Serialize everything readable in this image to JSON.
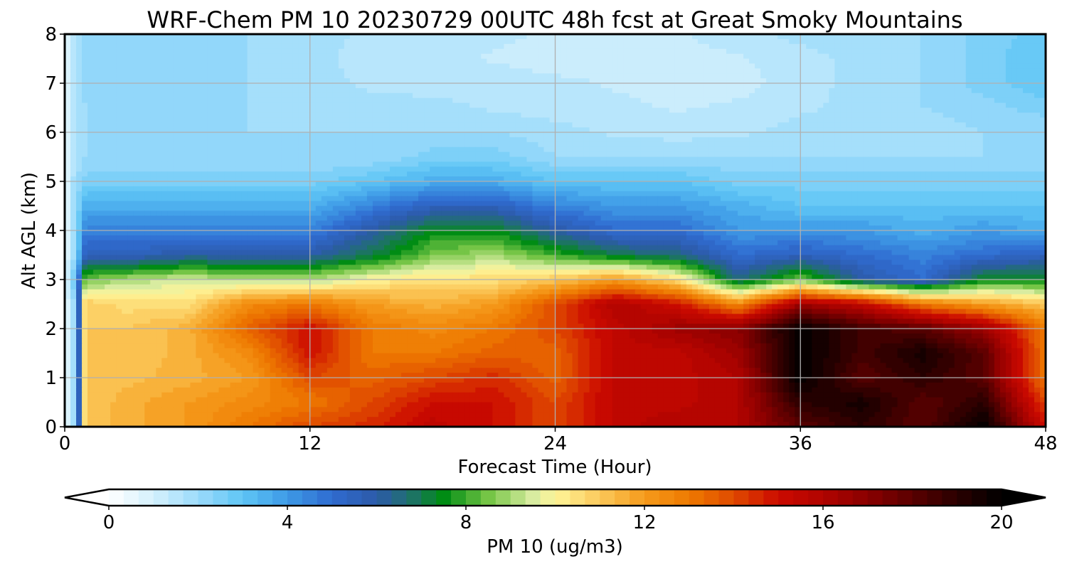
{
  "chart_data": {
    "type": "heatmap",
    "title": "WRF-Chem PM 10  20230729 00UTC 48h fcst at Great Smoky Mountains",
    "xlabel": "Forecast Time (Hour)",
    "ylabel": "Alt AGL (km)",
    "xlim": [
      0,
      48
    ],
    "ylim": [
      0,
      8
    ],
    "xticks": [
      "0",
      "12",
      "24",
      "36",
      "48"
    ],
    "yticks": [
      "0",
      "1",
      "2",
      "3",
      "4",
      "5",
      "6",
      "7",
      "8"
    ],
    "grid": true,
    "x": [
      0,
      0.5,
      1,
      3,
      6,
      9,
      12,
      15,
      18,
      21,
      24,
      27,
      30,
      33,
      36,
      39,
      42,
      45,
      48
    ],
    "y": [
      0,
      0.5,
      1,
      1.5,
      2,
      2.5,
      3,
      3.5,
      4,
      4.5,
      5,
      5.5,
      6,
      6.5,
      7,
      7.5,
      8
    ],
    "z": [
      [
        0.5,
        2,
        11,
        11.5,
        12,
        13,
        14,
        14.5,
        15.5,
        15,
        14,
        15.5,
        16,
        16,
        18,
        19,
        18,
        20,
        15
      ],
      [
        0.5,
        2,
        11,
        11.5,
        12,
        12.5,
        13,
        14,
        15,
        15,
        14,
        15.5,
        15.5,
        16,
        19,
        19.5,
        18,
        19,
        14
      ],
      [
        0.5,
        2,
        11,
        11.2,
        11.5,
        12,
        14,
        13.5,
        14,
        14.5,
        13.5,
        15.5,
        15.5,
        16,
        20,
        18,
        19,
        18,
        13
      ],
      [
        0.5,
        2,
        11,
        11,
        11.5,
        12.5,
        15,
        13,
        13,
        13.5,
        13.5,
        15.5,
        15.5,
        16.5,
        20,
        18.5,
        19.5,
        18,
        13
      ],
      [
        0.5,
        2,
        11,
        11,
        11.5,
        13.5,
        15,
        13,
        12.5,
        13,
        14,
        15.5,
        16.5,
        17,
        20,
        18.5,
        18,
        16.5,
        13
      ],
      [
        0.5,
        2,
        11,
        10.5,
        10.5,
        12.5,
        13,
        12,
        11.5,
        12,
        14,
        16,
        15,
        12.5,
        16.5,
        15.5,
        13,
        12,
        11
      ],
      [
        0.5,
        3,
        8.5,
        9,
        9.5,
        9,
        9,
        10,
        10.5,
        10.5,
        11,
        12,
        10.5,
        6.5,
        8.5,
        6,
        5,
        7.5,
        7.5
      ],
      [
        0.5,
        2,
        5.5,
        5.5,
        6,
        6,
        6,
        7,
        8.5,
        9,
        8,
        7,
        6.5,
        5,
        5.5,
        5,
        4.5,
        5,
        5.5
      ],
      [
        0.5,
        2,
        4.5,
        4.5,
        4.5,
        4.5,
        4.5,
        6,
        7.5,
        7.5,
        6,
        5,
        5,
        4,
        4,
        4,
        3.5,
        4,
        3.5
      ],
      [
        0.5,
        2,
        3.5,
        3.5,
        3.5,
        3.5,
        3.5,
        4.5,
        5.5,
        5.5,
        4.5,
        4,
        4,
        3.5,
        3,
        3,
        3,
        3,
        3
      ],
      [
        0.5,
        2,
        2.5,
        2.5,
        2.5,
        2.5,
        2.5,
        3,
        3.5,
        3.5,
        3,
        3,
        3,
        2.5,
        2.5,
        2.5,
        2.5,
        2.5,
        2.5
      ],
      [
        0.5,
        1.5,
        2,
        2,
        2,
        2,
        2,
        2,
        2.5,
        2.5,
        2,
        2,
        2,
        2,
        2,
        2,
        2,
        2,
        2
      ],
      [
        0.5,
        1.5,
        2,
        2,
        2,
        2,
        2,
        2,
        2,
        2,
        1.8,
        1.6,
        1.5,
        1.6,
        1.8,
        1.8,
        1.8,
        2,
        2
      ],
      [
        0.5,
        1.5,
        2,
        2,
        2,
        2,
        1.8,
        1.8,
        1.8,
        1.6,
        1.5,
        1.4,
        1.3,
        1.4,
        1.6,
        1.8,
        2,
        2.2,
        2.5
      ],
      [
        0.5,
        1.5,
        2.2,
        2.2,
        2.2,
        2,
        1.8,
        1.6,
        1.5,
        1.5,
        1.4,
        1.3,
        1.2,
        1.2,
        1.5,
        1.8,
        2,
        2.5,
        3
      ],
      [
        0.5,
        1.5,
        2.2,
        2.2,
        2,
        2,
        1.8,
        1.5,
        1.4,
        1.3,
        1.2,
        1.2,
        1.2,
        1.3,
        1.5,
        1.8,
        2,
        2.5,
        3
      ],
      [
        0.5,
        1.5,
        2.2,
        2,
        2,
        2,
        1.8,
        1.6,
        1.5,
        1.4,
        1.3,
        1.3,
        1.3,
        1.5,
        1.8,
        2,
        2,
        2.5,
        2.8
      ]
    ],
    "colorbar": {
      "label": "PM 10  (ug/m3)",
      "min": 0,
      "max": 20,
      "ticks": [
        "0",
        "4",
        "8",
        "12",
        "16",
        "20"
      ],
      "extend": "both",
      "stops": [
        {
          "v": 0,
          "c": "#ffffff"
        },
        {
          "v": 1,
          "c": "#d4f0fc"
        },
        {
          "v": 2,
          "c": "#9cdbfb"
        },
        {
          "v": 3,
          "c": "#5ec5f5"
        },
        {
          "v": 4,
          "c": "#3e9ae6"
        },
        {
          "v": 5,
          "c": "#2f6bd0"
        },
        {
          "v": 6,
          "c": "#2c5aa8"
        },
        {
          "v": 6.7,
          "c": "#216f72"
        },
        {
          "v": 7.5,
          "c": "#008c14"
        },
        {
          "v": 8.5,
          "c": "#75c546"
        },
        {
          "v": 9.5,
          "c": "#d8eca0"
        },
        {
          "v": 10,
          "c": "#fff59a"
        },
        {
          "v": 11,
          "c": "#fbc95a"
        },
        {
          "v": 12,
          "c": "#f59a1c"
        },
        {
          "v": 13,
          "c": "#ee7a00"
        },
        {
          "v": 14,
          "c": "#df4a00"
        },
        {
          "v": 15,
          "c": "#cc0a00"
        },
        {
          "v": 16,
          "c": "#b00400"
        },
        {
          "v": 17,
          "c": "#8a0000"
        },
        {
          "v": 18,
          "c": "#5a0000"
        },
        {
          "v": 19,
          "c": "#2a0000"
        },
        {
          "v": 20,
          "c": "#000000"
        }
      ]
    }
  }
}
